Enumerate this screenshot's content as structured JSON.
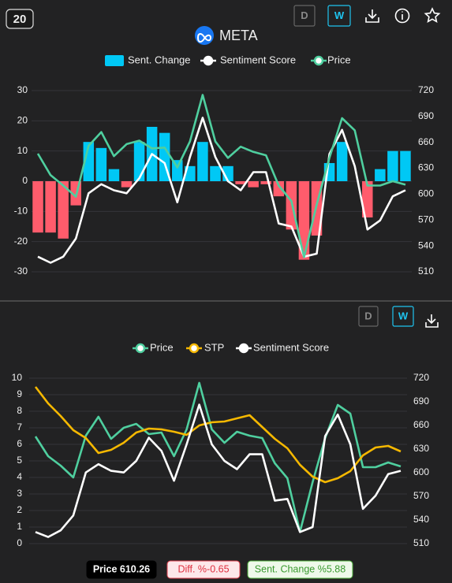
{
  "header": {
    "badge": "20",
    "title": "META",
    "buttons": [
      "D",
      "W"
    ]
  },
  "panel2_buttons": [
    "D",
    "W"
  ],
  "chart_data": [
    {
      "type": "combo",
      "ylim": [
        -30,
        30
      ],
      "yticks": [
        -30,
        -20,
        -10,
        0,
        10,
        20,
        30
      ],
      "y2lim": [
        510,
        720
      ],
      "y2ticks": [
        510,
        540,
        570,
        600,
        630,
        660,
        690,
        720
      ],
      "grid": true,
      "series": [
        {
          "name": "Sent. Change",
          "type": "bar",
          "color": "#00c8f5",
          "negative_color": "#ff5c6c",
          "values": [
            -17,
            -17,
            -19,
            -8,
            13,
            11,
            4,
            -2,
            13,
            18,
            16,
            7,
            5,
            13,
            5,
            5,
            -1,
            -2,
            -1,
            -5,
            -16,
            -26,
            -18,
            6,
            13,
            0,
            -12,
            4,
            10,
            10
          ]
        },
        {
          "name": "Sentiment Score",
          "type": "line",
          "color": "#ffffff",
          "values": [
            -25,
            -27,
            -25,
            -19,
            -4,
            -1,
            -3,
            -4,
            1,
            9,
            6,
            -7,
            8,
            21,
            8,
            0,
            -3,
            3,
            3,
            -14,
            -15,
            -25,
            -24,
            9,
            17,
            5,
            -16,
            -13,
            -5,
            -3
          ]
        },
        {
          "name": "Price",
          "type": "line",
          "color": "#4fcf9f",
          "axis": "y2",
          "values": [
            647,
            622,
            610,
            597,
            656,
            672,
            644,
            658,
            662,
            653,
            654,
            631,
            661,
            715,
            661,
            642,
            655,
            649,
            645,
            610,
            592,
            527,
            588,
            642,
            688,
            674,
            610,
            610,
            615,
            611
          ]
        }
      ]
    },
    {
      "type": "combo",
      "ylim": [
        0,
        10
      ],
      "yticks": [
        0,
        1,
        2,
        3,
        4,
        5,
        6,
        7,
        8,
        9,
        10
      ],
      "y2lim": [
        510,
        720
      ],
      "y2ticks": [
        510,
        540,
        570,
        600,
        630,
        660,
        690,
        720
      ],
      "grid": true,
      "series": [
        {
          "name": "Price",
          "type": "line",
          "color": "#4fcf9f",
          "axis": "y2",
          "values": [
            646,
            621,
            609,
            594,
            647,
            671,
            643,
            657,
            662,
            649,
            651,
            621,
            655,
            714,
            655,
            638,
            652,
            647,
            644,
            612,
            593,
            525,
            588,
            644,
            686,
            675,
            607,
            607,
            613,
            608
          ]
        },
        {
          "name": "STP",
          "type": "line",
          "color": "#f5b800",
          "axis": "y2",
          "values": [
            709,
            688,
            672,
            654,
            644,
            625,
            629,
            638,
            651,
            656,
            655,
            652,
            648,
            660,
            664,
            665,
            669,
            673,
            658,
            643,
            631,
            610,
            595,
            588,
            593,
            602,
            622,
            632,
            634,
            627
          ]
        },
        {
          "name": "Sentiment Score",
          "type": "line",
          "color": "#ffffff",
          "values": [
            0.7,
            0.4,
            0.8,
            1.7,
            4.3,
            4.8,
            4.4,
            4.3,
            5.0,
            6.4,
            5.6,
            3.8,
            6.0,
            8.4,
            6.0,
            5.0,
            4.5,
            5.4,
            5.4,
            2.6,
            2.7,
            0.7,
            1.0,
            6.5,
            7.8,
            6.0,
            2.1,
            2.9,
            4.2,
            4.4
          ]
        }
      ]
    }
  ],
  "footer": [
    {
      "label": "Price ",
      "value": 610.26
    },
    {
      "label": "Diff. %",
      "value": -0.65
    },
    {
      "label": "Sent. Change %",
      "value": 5.88
    }
  ]
}
